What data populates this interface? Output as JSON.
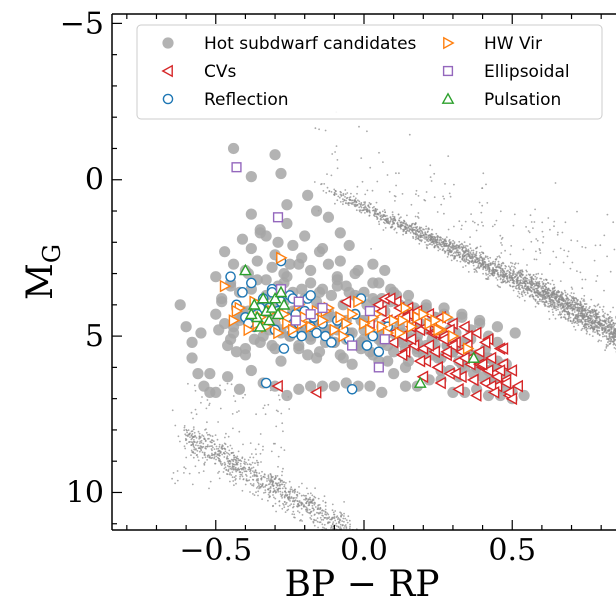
{
  "chart_data": {
    "type": "scatter",
    "title": "",
    "xlabel": "BP − RP",
    "ylabel": "M",
    "ylabel_sub": "G",
    "xlim": [
      -0.85,
      0.85
    ],
    "ylim": [
      11.2,
      -5.3
    ],
    "y_inverted": true,
    "x_ticks": [
      -0.5,
      0.0,
      0.5
    ],
    "x_tick_labels": [
      "−0.5",
      "0.0",
      "0.5"
    ],
    "y_ticks": [
      -5,
      0,
      5,
      10
    ],
    "y_tick_labels": [
      "−5",
      "0",
      "5",
      "10"
    ],
    "legend_placement": "upper-center",
    "colors": {
      "background_stars": "#8c8c8c",
      "hot_subdwarf": "#a6a6a6",
      "cv": "#d62728",
      "reflection": "#1f77b4",
      "hw_vir": "#ff7f0e",
      "ellipsoidal": "#9467bd",
      "pulsation": "#2ca02c"
    },
    "background": {
      "name": "",
      "description_type": "dense grey field-star sequences (main sequence band upper right, white dwarf sequence lower left)"
    },
    "series": [
      {
        "key": "hot_subdwarf",
        "name": "Hot subdwarf candidates",
        "marker": "filled-circle",
        "x": [
          -0.58,
          -0.55,
          -0.52,
          -0.5,
          -0.48,
          -0.47,
          -0.45,
          -0.44,
          -0.43,
          -0.42,
          -0.41,
          -0.4,
          -0.39,
          -0.38,
          -0.37,
          -0.36,
          -0.35,
          -0.34,
          -0.33,
          -0.32,
          -0.31,
          -0.3,
          -0.29,
          -0.28,
          -0.27,
          -0.26,
          -0.25,
          -0.24,
          -0.23,
          -0.22,
          -0.21,
          -0.2,
          -0.19,
          -0.18,
          -0.17,
          -0.16,
          -0.15,
          -0.14,
          -0.13,
          -0.12,
          -0.11,
          -0.1,
          -0.09,
          -0.08,
          -0.07,
          -0.06,
          -0.05,
          -0.04,
          -0.03,
          -0.02,
          -0.01,
          0.0,
          0.01,
          0.02,
          0.03,
          0.04,
          0.05,
          0.06,
          0.07,
          0.08,
          0.09,
          0.1,
          0.11,
          0.12,
          0.13,
          0.14,
          0.15,
          0.16,
          0.17,
          0.18,
          0.19,
          0.2,
          0.21,
          0.22,
          0.23,
          0.24,
          0.25,
          0.26,
          0.27,
          0.28,
          0.29,
          0.3,
          0.31,
          0.32,
          0.33,
          0.34,
          0.35,
          0.36,
          0.37,
          0.38,
          0.39,
          0.4,
          0.41,
          0.42,
          0.43,
          0.44,
          0.45,
          0.46,
          0.47,
          0.5,
          -0.47,
          -0.44,
          -0.41,
          -0.38,
          -0.36,
          -0.33,
          -0.3,
          -0.27,
          -0.24,
          -0.21,
          -0.18,
          -0.15,
          -0.12,
          -0.09,
          -0.06,
          -0.03,
          0.0,
          0.03,
          0.06,
          0.09,
          0.12,
          0.15,
          0.18,
          0.21,
          0.24,
          0.27,
          0.3,
          0.33,
          0.36,
          0.39,
          0.42,
          0.45,
          -0.38,
          -0.35,
          -0.29,
          -0.26,
          -0.2,
          -0.14,
          -0.08,
          -0.02,
          0.05,
          0.11,
          0.17,
          0.23,
          0.29,
          0.35,
          0.41,
          -0.46,
          -0.4,
          -0.34,
          -0.28,
          -0.22,
          -0.16,
          -0.1,
          -0.04,
          0.02,
          0.08,
          0.14,
          0.2,
          0.26,
          0.32,
          0.38,
          0.44,
          -0.49,
          -0.43,
          -0.37,
          -0.31,
          -0.25,
          -0.19,
          -0.13,
          -0.07,
          -0.01,
          0.05,
          -0.5,
          -0.45,
          -0.39,
          -0.33,
          -0.27,
          -0.21,
          -0.15,
          -0.09,
          -0.03,
          0.03,
          0.09,
          0.15,
          0.21,
          0.27,
          0.33,
          0.39,
          0.45,
          0.51,
          -0.42,
          -0.36,
          -0.3,
          -0.24,
          -0.18,
          -0.12,
          -0.06,
          0.0,
          0.06,
          0.12,
          0.18,
          0.24,
          0.3,
          0.36,
          0.42,
          0.48,
          -0.48,
          -0.36,
          -0.24,
          -0.12,
          0.0,
          0.12,
          0.24,
          0.36,
          -0.44,
          -0.3,
          -0.18,
          -0.06,
          0.06,
          0.18,
          0.3,
          0.42,
          -0.62,
          -0.6,
          -0.58,
          -0.56,
          -0.54,
          -0.52,
          -0.5,
          -0.46,
          -0.42,
          -0.38,
          -0.34,
          -0.3,
          -0.26,
          -0.22,
          -0.18,
          -0.14,
          -0.1,
          -0.06,
          -0.02,
          0.02,
          0.06,
          0.1,
          0.14,
          0.18,
          0.22,
          0.26,
          0.3,
          0.34,
          0.38,
          0.42,
          0.46,
          0.5,
          0.54,
          -0.45,
          -0.42,
          -0.4,
          -0.37,
          -0.35,
          -0.32,
          -0.3,
          -0.28,
          -0.25,
          -0.22,
          -0.2,
          -0.18,
          -0.15,
          -0.12,
          -0.1,
          -0.08,
          -0.05,
          -0.02,
          0.0,
          0.03,
          0.05,
          0.08,
          0.1,
          0.13,
          0.15,
          0.18,
          0.2,
          0.23,
          0.25,
          0.28,
          0.3,
          0.33,
          0.35,
          0.38,
          0.4,
          0.43,
          0.45,
          0.48,
          -0.41,
          -0.33,
          -0.25,
          -0.17,
          -0.09,
          -0.01,
          0.07,
          0.15,
          0.23,
          0.31,
          0.39,
          0.47
        ],
        "y": [
          5.2,
          4.9,
          6.2,
          4.3,
          3.8,
          4.6,
          3.3,
          4.9,
          4.1,
          3.6,
          4.4,
          2.9,
          4.2,
          3.5,
          4.7,
          3.2,
          4.0,
          4.5,
          3.7,
          4.3,
          2.8,
          4.1,
          3.4,
          4.8,
          3.9,
          3.1,
          4.5,
          3.6,
          4.2,
          2.7,
          4.9,
          3.8,
          4.3,
          3.3,
          4.6,
          3.9,
          4.1,
          3.5,
          4.8,
          4.2,
          3.7,
          4.4,
          3.2,
          4.7,
          4.0,
          4.5,
          3.6,
          4.9,
          4.3,
          3.8,
          5.2,
          4.6,
          4.0,
          4.9,
          4.4,
          3.9,
          5.1,
          4.7,
          4.2,
          5.3,
          4.8,
          3.6,
          5.0,
          4.5,
          4.9,
          5.4,
          4.3,
          5.1,
          4.7,
          5.5,
          4.6,
          4.2,
          5.3,
          4.8,
          5.6,
          4.4,
          5.0,
          5.7,
          4.9,
          5.3,
          6.1,
          5.5,
          4.9,
          5.8,
          5.2,
          6.0,
          5.4,
          5.8,
          6.2,
          5.6,
          5.9,
          6.3,
          5.7,
          6.1,
          6.4,
          5.9,
          6.2,
          6.5,
          6.7,
          6.8,
          2.3,
          2.7,
          1.9,
          2.2,
          2.6,
          1.8,
          2.4,
          3.0,
          2.1,
          2.5,
          2.9,
          2.3,
          2.7,
          3.1,
          3.4,
          3.0,
          3.6,
          3.3,
          3.8,
          3.5,
          4.0,
          3.7,
          4.2,
          4.0,
          4.4,
          4.1,
          4.6,
          4.3,
          4.8,
          4.5,
          5.0,
          5.2,
          1.1,
          1.6,
          2.0,
          1.4,
          1.8,
          2.2,
          2.6,
          2.9,
          3.3,
          3.7,
          4.1,
          4.5,
          4.8,
          5.1,
          5.4,
          5.3,
          5.6,
          5.0,
          5.8,
          5.4,
          5.7,
          5.2,
          5.9,
          5.5,
          5.8,
          6.0,
          5.6,
          6.1,
          6.3,
          6.0,
          6.4,
          4.8,
          5.5,
          5.1,
          5.3,
          5.0,
          5.6,
          5.2,
          5.7,
          5.4,
          5.8,
          3.1,
          3.4,
          3.0,
          3.2,
          3.3,
          3.5,
          3.6,
          3.4,
          3.7,
          3.8,
          3.9,
          4.0,
          4.1,
          4.3,
          4.4,
          4.6,
          4.7,
          4.9,
          4.4,
          4.5,
          4.6,
          4.7,
          4.8,
          4.9,
          5.0,
          4.8,
          5.0,
          5.1,
          5.2,
          5.3,
          5.4,
          5.6,
          5.7,
          5.9,
          3.9,
          4.0,
          4.2,
          4.4,
          4.5,
          4.7,
          4.9,
          5.1,
          4.7,
          4.8,
          5.0,
          5.1,
          5.2,
          5.4,
          5.5,
          5.7,
          4.0,
          4.7,
          5.7,
          6.2,
          6.6,
          6.8,
          6.8,
          6.3,
          6.7,
          6.1,
          6.5,
          6.6,
          6.9,
          6.7,
          6.6,
          6.6,
          6.6,
          6.5,
          6.6,
          6.6,
          6.8,
          6.2,
          6.6,
          6.6,
          6.4,
          6.4,
          6.8,
          6.8,
          6.7,
          6.9,
          6.9,
          7.0,
          6.9,
          5.1,
          4.5,
          5.4,
          4.6,
          5.2,
          4.8,
          5.4,
          4.9,
          5.0,
          5.3,
          4.7,
          5.1,
          5.5,
          4.8,
          5.2,
          5.6,
          4.9,
          5.3,
          5.1,
          5.6,
          5.0,
          4.9,
          5.5,
          5.2,
          5.8,
          5.0,
          5.4,
          5.1,
          5.7,
          5.3,
          5.5,
          5.9,
          5.6,
          6.0,
          5.7,
          6.1,
          5.8,
          6.2,
          4.2,
          4.4,
          4.6,
          4.3,
          4.8,
          4.5,
          4.9,
          5.0,
          5.3,
          5.4,
          5.6,
          6.0
        ],
        "extra_outliers_x": [
          -0.44,
          -0.38,
          -0.35,
          -0.3,
          -0.28,
          -0.26,
          -0.19,
          -0.16,
          -0.12,
          -0.08,
          -0.05,
          0.03,
          -0.25,
          0.07
        ],
        "extra_outliers_y": [
          -1.0,
          -0.1,
          1.7,
          -0.8,
          -0.2,
          0.8,
          0.5,
          1.0,
          1.2,
          1.7,
          2.1,
          2.7,
          2.7,
          2.9
        ]
      },
      {
        "key": "cv",
        "name": "CVs",
        "marker": "left-triangle-open",
        "x": [
          -0.29,
          -0.16,
          -0.06,
          0.02,
          0.05,
          0.07,
          0.08,
          0.1,
          0.11,
          0.12,
          0.13,
          0.14,
          0.15,
          0.16,
          0.17,
          0.18,
          0.19,
          0.2,
          0.21,
          0.22,
          0.23,
          0.24,
          0.25,
          0.26,
          0.27,
          0.28,
          0.29,
          0.3,
          0.31,
          0.32,
          0.33,
          0.34,
          0.35,
          0.36,
          0.37,
          0.38,
          0.39,
          0.4,
          0.41,
          0.42,
          0.43,
          0.44,
          0.45,
          0.46,
          0.47,
          0.48,
          0.49,
          0.5,
          0.52,
          0.09,
          0.12,
          0.15,
          0.18,
          0.21,
          0.24,
          0.27,
          0.3,
          0.33,
          0.36,
          0.39,
          0.42,
          0.45,
          0.48,
          0.1,
          0.16,
          0.22,
          0.28,
          0.34,
          0.4,
          0.46,
          0.13,
          0.19,
          0.25,
          0.31,
          0.37,
          0.43,
          0.49,
          0.2,
          0.26,
          0.32,
          0.38,
          0.44,
          0.5,
          0.06,
          0.14,
          0.23,
          0.29,
          0.35,
          0.41,
          0.47
        ],
        "y": [
          6.6,
          6.8,
          3.9,
          4.6,
          4.0,
          3.8,
          4.5,
          5.2,
          3.9,
          4.4,
          5.0,
          5.5,
          4.1,
          4.7,
          5.3,
          4.2,
          4.8,
          5.4,
          5.8,
          4.3,
          4.9,
          5.5,
          6.0,
          4.4,
          5.0,
          5.6,
          6.2,
          4.6,
          5.2,
          5.8,
          6.3,
          4.7,
          5.3,
          5.9,
          6.4,
          4.9,
          5.5,
          6.0,
          6.5,
          5.1,
          5.7,
          6.2,
          6.6,
          5.4,
          5.9,
          6.4,
          6.9,
          6.1,
          6.6,
          3.8,
          4.1,
          4.3,
          4.5,
          4.7,
          4.9,
          5.1,
          5.3,
          5.5,
          5.7,
          5.9,
          6.1,
          6.3,
          6.5,
          4.9,
          5.1,
          5.3,
          5.5,
          5.7,
          5.9,
          6.1,
          5.6,
          5.8,
          6.0,
          6.2,
          6.4,
          6.6,
          6.8,
          6.3,
          6.5,
          6.7,
          6.9,
          6.8,
          7.0,
          4.2,
          4.4,
          4.6,
          4.8,
          5.0,
          5.2,
          5.4
        ]
      },
      {
        "key": "reflection",
        "name": "Reflection",
        "marker": "circle-open",
        "x": [
          -0.45,
          -0.43,
          -0.41,
          -0.4,
          -0.38,
          -0.37,
          -0.35,
          -0.34,
          -0.33,
          -0.31,
          -0.3,
          -0.29,
          -0.28,
          -0.27,
          -0.26,
          -0.25,
          -0.24,
          -0.23,
          -0.22,
          -0.21,
          -0.2,
          -0.19,
          -0.18,
          -0.17,
          -0.16,
          -0.14,
          -0.13,
          -0.11,
          -0.09,
          -0.07,
          -0.05,
          -0.03,
          -0.01,
          0.01,
          0.03,
          0.05,
          0.08,
          -0.33,
          -0.31,
          -0.28,
          -0.24,
          -0.04,
          0.01,
          -0.36,
          -0.39,
          -0.32,
          -0.18
        ],
        "y": [
          3.1,
          4.0,
          3.6,
          4.4,
          3.3,
          4.7,
          4.1,
          3.8,
          4.5,
          3.5,
          4.8,
          4.2,
          3.9,
          5.4,
          4.4,
          3.7,
          4.9,
          4.3,
          4.6,
          5.0,
          4.2,
          3.8,
          4.7,
          4.4,
          4.9,
          4.6,
          5.0,
          5.2,
          4.5,
          4.8,
          5.1,
          4.3,
          3.8,
          5.3,
          5.0,
          5.5,
          4.7,
          6.5,
          3.6,
          2.6,
          3.8,
          6.7,
          5.3,
          4.3,
          4.6,
          4.1,
          3.7
        ]
      },
      {
        "key": "hw_vir",
        "name": "HW Vir",
        "marker": "right-triangle-open",
        "x": [
          -0.47,
          -0.44,
          -0.42,
          -0.39,
          -0.37,
          -0.35,
          -0.33,
          -0.31,
          -0.29,
          -0.27,
          -0.26,
          -0.24,
          -0.22,
          -0.2,
          -0.18,
          -0.16,
          -0.14,
          -0.12,
          -0.1,
          -0.08,
          -0.06,
          -0.04,
          -0.02,
          0.0,
          0.02,
          0.04,
          0.06,
          0.08,
          0.1,
          0.12,
          0.14,
          0.16,
          0.18,
          0.2,
          0.22,
          0.24,
          0.26,
          0.28,
          0.3,
          -0.28,
          -0.43,
          -0.36,
          -0.21,
          -0.13,
          -0.07,
          0.03,
          0.13,
          0.25,
          0.35
        ],
        "y": [
          3.4,
          4.5,
          4.1,
          4.8,
          3.9,
          4.4,
          4.7,
          4.2,
          4.9,
          4.3,
          4.6,
          4.8,
          4.0,
          4.4,
          4.7,
          4.2,
          4.5,
          4.1,
          4.8,
          4.4,
          4.6,
          4.3,
          3.9,
          4.6,
          4.8,
          4.3,
          4.7,
          4.9,
          4.5,
          4.9,
          4.1,
          4.7,
          4.4,
          4.3,
          4.6,
          4.5,
          4.8,
          4.4,
          5.0,
          2.5,
          4.2,
          4.6,
          4.6,
          4.2,
          5.0,
          4.4,
          4.5,
          4.8,
          5.4
        ]
      },
      {
        "key": "ellipsoidal",
        "name": "Ellipsoidal",
        "marker": "square-open",
        "x": [
          -0.43,
          -0.29,
          -0.28,
          -0.23,
          -0.18,
          -0.14,
          -0.04,
          0.02,
          0.05,
          0.07,
          -0.22
        ],
        "y": [
          -0.4,
          1.2,
          3.5,
          4.5,
          4.3,
          4.1,
          5.3,
          4.2,
          6.0,
          5.1,
          3.9
        ]
      },
      {
        "key": "pulsation",
        "name": "Pulsation",
        "marker": "up-triangle-open",
        "x": [
          -0.4,
          -0.37,
          -0.36,
          -0.35,
          -0.34,
          -0.33,
          -0.32,
          -0.31,
          -0.3,
          -0.29,
          -0.28,
          -0.27,
          0.19,
          0.37,
          -0.38
        ],
        "y": [
          2.9,
          4.0,
          4.4,
          4.7,
          3.8,
          4.2,
          4.5,
          4.1,
          3.8,
          4.3,
          3.6,
          4.0,
          6.5,
          5.7,
          4.3
        ]
      }
    ]
  }
}
